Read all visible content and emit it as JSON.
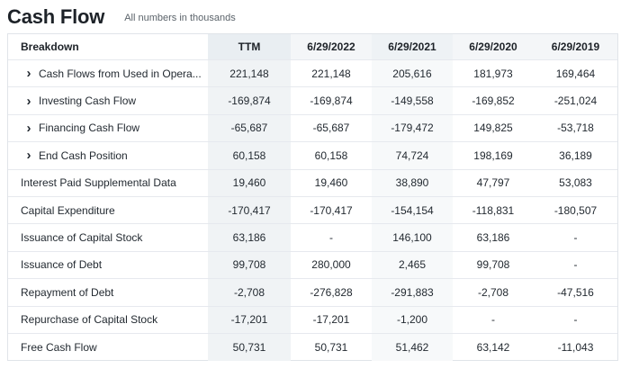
{
  "header": {
    "title": "Cash Flow",
    "subtitle": "All numbers in thousands"
  },
  "icons": {
    "expand": "chevron-right-icon"
  },
  "table": {
    "columns": [
      "Breakdown",
      "TTM",
      "6/29/2022",
      "6/29/2021",
      "6/29/2020",
      "6/29/2019"
    ],
    "rows": [
      {
        "label": "Cash Flows from Used in Opera...",
        "expandable": true,
        "values": [
          "221,148",
          "221,148",
          "205,616",
          "181,973",
          "169,464"
        ]
      },
      {
        "label": "Investing Cash Flow",
        "expandable": true,
        "values": [
          "-169,874",
          "-169,874",
          "-149,558",
          "-169,852",
          "-251,024"
        ]
      },
      {
        "label": "Financing Cash Flow",
        "expandable": true,
        "values": [
          "-65,687",
          "-65,687",
          "-179,472",
          "149,825",
          "-53,718"
        ]
      },
      {
        "label": "End Cash Position",
        "expandable": true,
        "values": [
          "60,158",
          "60,158",
          "74,724",
          "198,169",
          "36,189"
        ]
      },
      {
        "label": "Interest Paid Supplemental Data",
        "expandable": false,
        "values": [
          "19,460",
          "19,460",
          "38,890",
          "47,797",
          "53,083"
        ]
      },
      {
        "label": "Capital Expenditure",
        "expandable": false,
        "values": [
          "-170,417",
          "-170,417",
          "-154,154",
          "-118,831",
          "-180,507"
        ]
      },
      {
        "label": "Issuance of Capital Stock",
        "expandable": false,
        "values": [
          "63,186",
          "-",
          "146,100",
          "63,186",
          "-"
        ]
      },
      {
        "label": "Issuance of Debt",
        "expandable": false,
        "values": [
          "99,708",
          "280,000",
          "2,465",
          "99,708",
          "-"
        ]
      },
      {
        "label": "Repayment of Debt",
        "expandable": false,
        "values": [
          "-2,708",
          "-276,828",
          "-291,883",
          "-2,708",
          "-47,516"
        ]
      },
      {
        "label": "Repurchase of Capital Stock",
        "expandable": false,
        "values": [
          "-17,201",
          "-17,201",
          "-1,200",
          "-",
          "-"
        ]
      },
      {
        "label": "Free Cash Flow",
        "expandable": false,
        "values": [
          "50,731",
          "50,731",
          "51,462",
          "63,142",
          "-11,043"
        ]
      }
    ]
  }
}
